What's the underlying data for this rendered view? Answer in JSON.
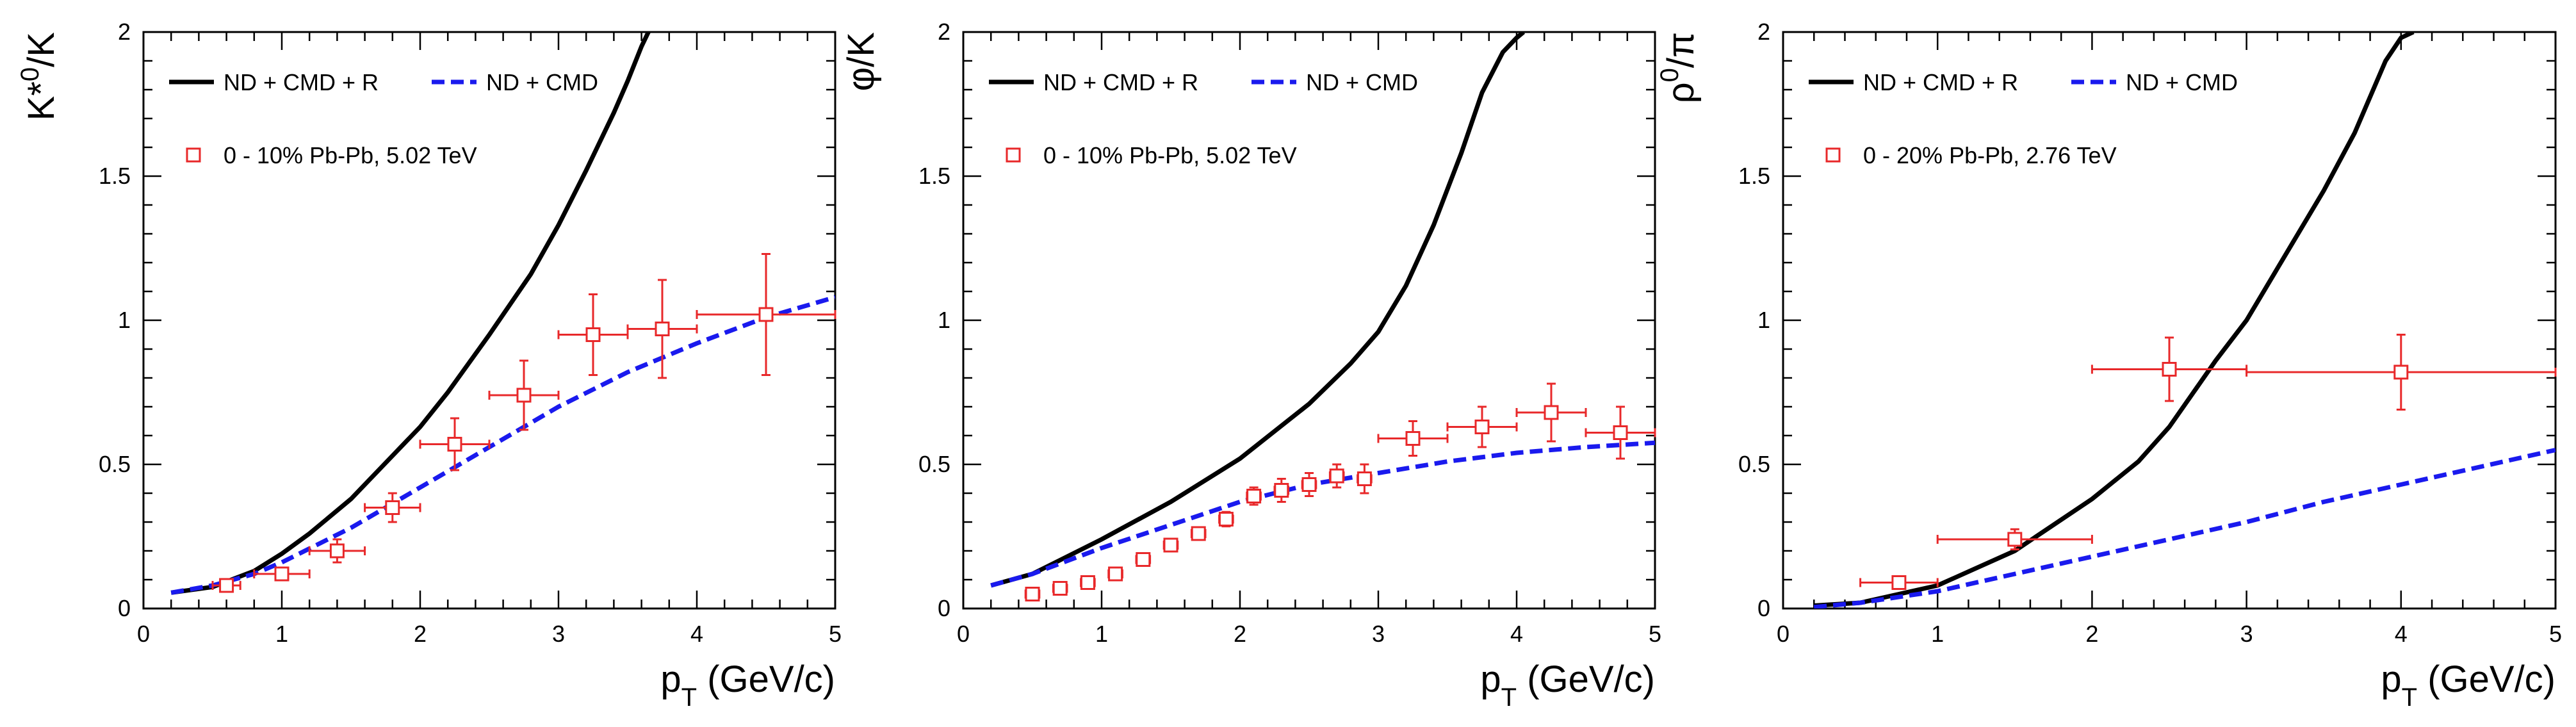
{
  "colors": {
    "model_full": "#000000",
    "model_nocmd": "#1a1aee",
    "data": "#e8282a",
    "frame": "#000000"
  },
  "chart_data": [
    {
      "type": "line",
      "ylabel_base": "K*",
      "ylabel_sup": "0",
      "ylabel_tail": "/K",
      "xlabel_base": "p",
      "xlabel_sub": "T",
      "xlabel_tail": " (GeV/c)",
      "xlim": [
        0,
        5
      ],
      "ylim": [
        0,
        2
      ],
      "xticks": [
        0,
        1,
        2,
        3,
        4,
        5
      ],
      "yticks": [
        0,
        0.5,
        1,
        1.5,
        2
      ],
      "xtick_labels": [
        "0",
        "1",
        "2",
        "3",
        "4",
        "5"
      ],
      "ytick_labels": [
        "0",
        "0.5",
        "1",
        "1.5",
        "2"
      ],
      "legend": "top-left",
      "series": [
        {
          "name": "ND + CMD + R",
          "style": "solid",
          "x": [
            0.2,
            0.5,
            0.8,
            1.0,
            1.2,
            1.5,
            1.8,
            2.0,
            2.2,
            2.5,
            2.8,
            3.0,
            3.2,
            3.4,
            3.5,
            3.6,
            3.65
          ],
          "y": [
            0.055,
            0.075,
            0.13,
            0.19,
            0.26,
            0.38,
            0.53,
            0.63,
            0.75,
            0.95,
            1.16,
            1.33,
            1.52,
            1.72,
            1.83,
            1.95,
            2.0
          ]
        },
        {
          "name": "ND + CMD",
          "style": "dashed",
          "x": [
            0.2,
            0.5,
            0.8,
            1.0,
            1.5,
            2.0,
            2.5,
            3.0,
            3.5,
            4.0,
            4.5,
            5.0
          ],
          "y": [
            0.055,
            0.08,
            0.12,
            0.16,
            0.28,
            0.42,
            0.56,
            0.7,
            0.82,
            0.92,
            1.01,
            1.08
          ]
        }
      ],
      "points_label": "0 - 10% Pb-Pb, 5.02 TeV",
      "points": [
        {
          "x": 0.6,
          "y": 0.08,
          "xerr": 0.1,
          "yerr": 0.02
        },
        {
          "x": 1.0,
          "y": 0.12,
          "xerr": 0.2,
          "yerr": 0.02
        },
        {
          "x": 1.4,
          "y": 0.2,
          "xerr": 0.2,
          "yerr": 0.04
        },
        {
          "x": 1.8,
          "y": 0.35,
          "xerr": 0.2,
          "yerr": 0.05
        },
        {
          "x": 2.25,
          "y": 0.57,
          "xerr": 0.25,
          "yerr": 0.09
        },
        {
          "x": 2.75,
          "y": 0.74,
          "xerr": 0.25,
          "yerr": 0.12
        },
        {
          "x": 3.25,
          "y": 0.95,
          "xerr": 0.25,
          "yerr": 0.14
        },
        {
          "x": 3.75,
          "y": 0.97,
          "xerr": 0.25,
          "yerr": 0.17
        },
        {
          "x": 4.5,
          "y": 1.02,
          "xerr": 0.5,
          "yerr": 0.21
        }
      ]
    },
    {
      "type": "line",
      "ylabel_base": "φ/K",
      "ylabel_sup": "",
      "ylabel_tail": "",
      "xlabel_base": "p",
      "xlabel_sub": "T",
      "xlabel_tail": " (GeV/c)",
      "xlim": [
        0,
        5
      ],
      "ylim": [
        0,
        2
      ],
      "xticks": [
        0,
        1,
        2,
        3,
        4,
        5
      ],
      "yticks": [
        0,
        0.5,
        1,
        1.5,
        2
      ],
      "xtick_labels": [
        "0",
        "1",
        "2",
        "3",
        "4",
        "5"
      ],
      "ytick_labels": [
        "0",
        "0.5",
        "1",
        "1.5",
        "2"
      ],
      "legend": "top-left",
      "series": [
        {
          "name": "ND + CMD + R",
          "style": "solid",
          "x": [
            0.2,
            0.5,
            1.0,
            1.5,
            2.0,
            2.5,
            2.8,
            3.0,
            3.2,
            3.4,
            3.6,
            3.75,
            3.9,
            4.0,
            4.05
          ],
          "y": [
            0.08,
            0.12,
            0.24,
            0.37,
            0.52,
            0.71,
            0.85,
            0.96,
            1.12,
            1.33,
            1.58,
            1.79,
            1.93,
            1.98,
            2.0
          ]
        },
        {
          "name": "ND + CMD",
          "style": "dashed",
          "x": [
            0.2,
            0.5,
            1.0,
            1.5,
            2.0,
            2.5,
            3.0,
            3.5,
            4.0,
            4.5,
            5.0
          ],
          "y": [
            0.08,
            0.12,
            0.21,
            0.29,
            0.37,
            0.43,
            0.47,
            0.51,
            0.54,
            0.56,
            0.575
          ]
        }
      ],
      "points_label": "0 - 10% Pb-Pb, 5.02 TeV",
      "points": [
        {
          "x": 0.5,
          "y": 0.05,
          "xerr": 0.05,
          "yerr": 0.01
        },
        {
          "x": 0.7,
          "y": 0.07,
          "xerr": 0.05,
          "yerr": 0.01
        },
        {
          "x": 0.9,
          "y": 0.09,
          "xerr": 0.05,
          "yerr": 0.01
        },
        {
          "x": 1.1,
          "y": 0.12,
          "xerr": 0.05,
          "yerr": 0.01
        },
        {
          "x": 1.3,
          "y": 0.17,
          "xerr": 0.05,
          "yerr": 0.015
        },
        {
          "x": 1.5,
          "y": 0.22,
          "xerr": 0.05,
          "yerr": 0.02
        },
        {
          "x": 1.7,
          "y": 0.26,
          "xerr": 0.05,
          "yerr": 0.02
        },
        {
          "x": 1.9,
          "y": 0.31,
          "xerr": 0.05,
          "yerr": 0.025
        },
        {
          "x": 2.1,
          "y": 0.39,
          "xerr": 0.05,
          "yerr": 0.03
        },
        {
          "x": 2.3,
          "y": 0.41,
          "xerr": 0.05,
          "yerr": 0.04
        },
        {
          "x": 2.5,
          "y": 0.43,
          "xerr": 0.05,
          "yerr": 0.04
        },
        {
          "x": 2.7,
          "y": 0.46,
          "xerr": 0.05,
          "yerr": 0.04
        },
        {
          "x": 2.9,
          "y": 0.45,
          "xerr": 0.05,
          "yerr": 0.05
        },
        {
          "x": 3.25,
          "y": 0.59,
          "xerr": 0.25,
          "yerr": 0.06
        },
        {
          "x": 3.75,
          "y": 0.63,
          "xerr": 0.25,
          "yerr": 0.07
        },
        {
          "x": 4.25,
          "y": 0.68,
          "xerr": 0.25,
          "yerr": 0.1
        },
        {
          "x": 4.75,
          "y": 0.61,
          "xerr": 0.25,
          "yerr": 0.09
        }
      ]
    },
    {
      "type": "line",
      "ylabel_base": "ρ",
      "ylabel_sup": "0",
      "ylabel_tail": "/π",
      "xlabel_base": "p",
      "xlabel_sub": "T",
      "xlabel_tail": " (GeV/c)",
      "xlim": [
        0,
        5
      ],
      "ylim": [
        0,
        2
      ],
      "xticks": [
        0,
        1,
        2,
        3,
        4,
        5
      ],
      "yticks": [
        0,
        0.5,
        1,
        1.5,
        2
      ],
      "xtick_labels": [
        "0",
        "1",
        "2",
        "3",
        "4",
        "5"
      ],
      "ytick_labels": [
        "0",
        "0.5",
        "1",
        "1.5",
        "2"
      ],
      "legend": "top-left",
      "series": [
        {
          "name": "ND + CMD + R",
          "style": "solid",
          "x": [
            0.2,
            0.5,
            1.0,
            1.5,
            2.0,
            2.3,
            2.5,
            2.8,
            3.0,
            3.2,
            3.5,
            3.7,
            3.9,
            4.0,
            4.08
          ],
          "y": [
            0.01,
            0.02,
            0.08,
            0.2,
            0.38,
            0.51,
            0.63,
            0.86,
            1.0,
            1.18,
            1.45,
            1.65,
            1.9,
            1.98,
            2.0
          ]
        },
        {
          "name": "ND + CMD",
          "style": "dashed",
          "x": [
            0.2,
            0.5,
            1.0,
            1.5,
            2.0,
            2.5,
            3.0,
            3.5,
            4.0,
            4.5,
            5.0
          ],
          "y": [
            0.005,
            0.02,
            0.06,
            0.12,
            0.18,
            0.24,
            0.3,
            0.37,
            0.43,
            0.49,
            0.55
          ]
        }
      ],
      "points_label": "0 - 20% Pb-Pb, 2.76 TeV",
      "points": [
        {
          "x": 0.75,
          "y": 0.09,
          "xerr": 0.25,
          "yerr": 0.02
        },
        {
          "x": 1.5,
          "y": 0.24,
          "xerr": 0.5,
          "yerr": 0.035
        },
        {
          "x": 2.5,
          "y": 0.83,
          "xerr": 0.5,
          "yerr": 0.11
        },
        {
          "x": 4.0,
          "y": 0.82,
          "xerr": 1.0,
          "yerr": 0.13
        }
      ]
    }
  ]
}
